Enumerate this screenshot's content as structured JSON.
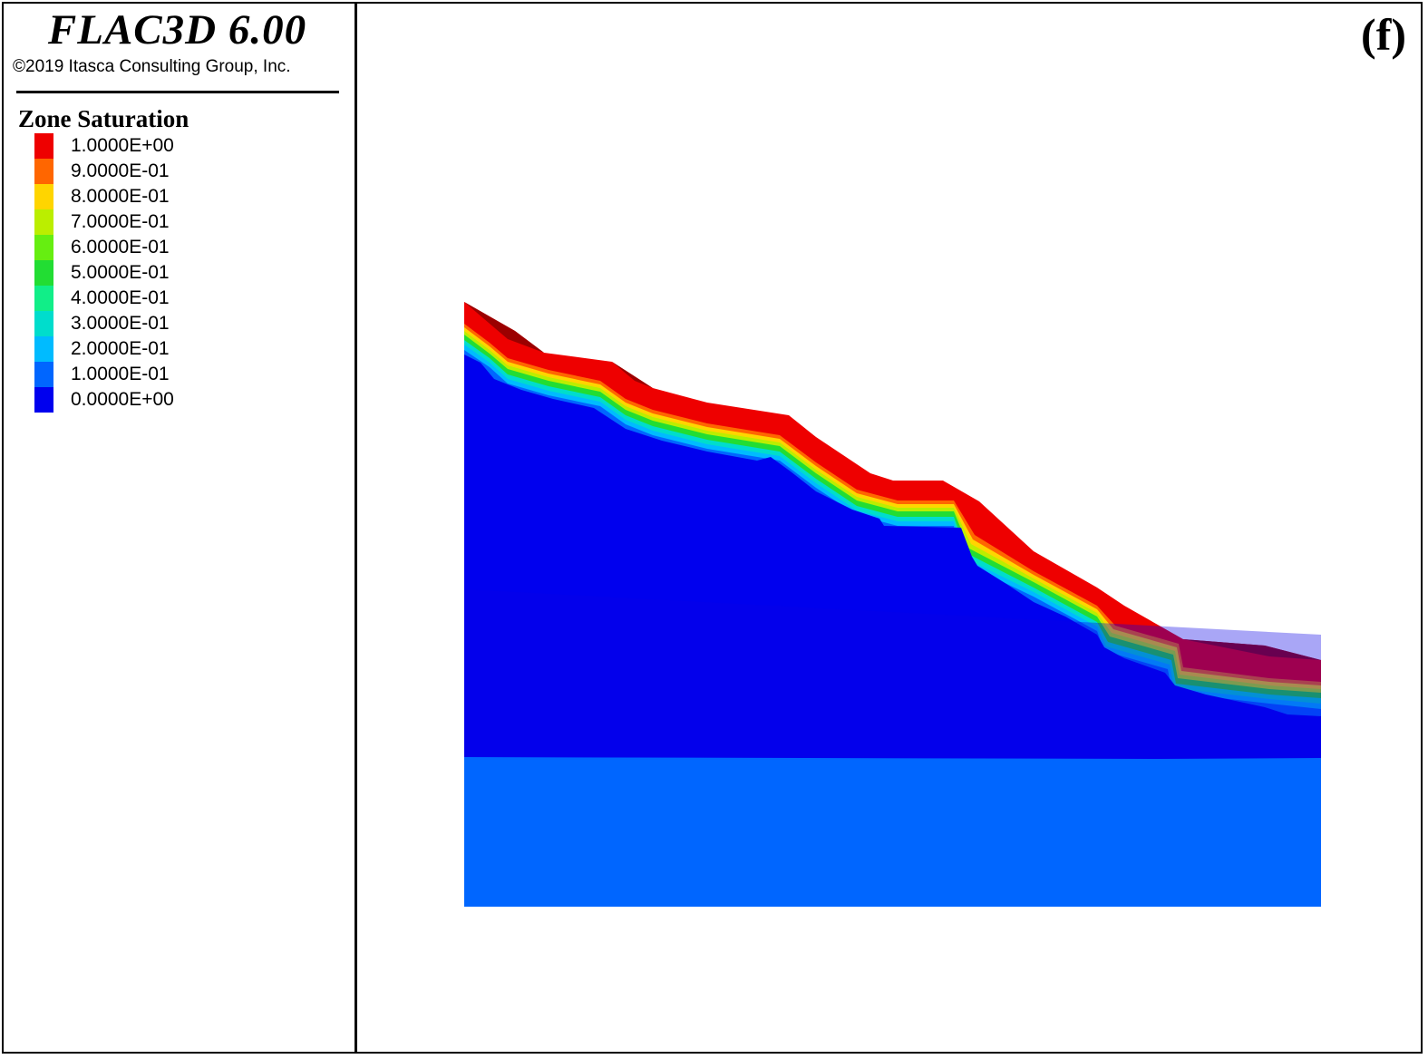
{
  "header": {
    "app_title": "FLAC3D 6.00",
    "copyright": "©2019 Itasca Consulting Group, Inc."
  },
  "legend": {
    "title": "Zone Saturation",
    "items": [
      {
        "label": "1.0000E+00",
        "color": "#ee0000"
      },
      {
        "label": "9.0000E-01",
        "color": "#ff6600"
      },
      {
        "label": "8.0000E-01",
        "color": "#ffd500"
      },
      {
        "label": "7.0000E-01",
        "color": "#bbee00"
      },
      {
        "label": "6.0000E-01",
        "color": "#66ee11"
      },
      {
        "label": "5.0000E-01",
        "color": "#22dd33"
      },
      {
        "label": "4.0000E-01",
        "color": "#11ee88"
      },
      {
        "label": "3.0000E-01",
        "color": "#00ddcc"
      },
      {
        "label": "2.0000E-01",
        "color": "#00bbff"
      },
      {
        "label": "1.0000E-01",
        "color": "#0066ff"
      },
      {
        "label": "0.0000E+00",
        "color": "#0000ee"
      }
    ]
  },
  "panel": {
    "label": "(f)"
  },
  "colors": {
    "saturated": "#ee0000",
    "saturated_dark": "#9b0000",
    "dry": "#0000ee",
    "frame": "#000000"
  }
}
